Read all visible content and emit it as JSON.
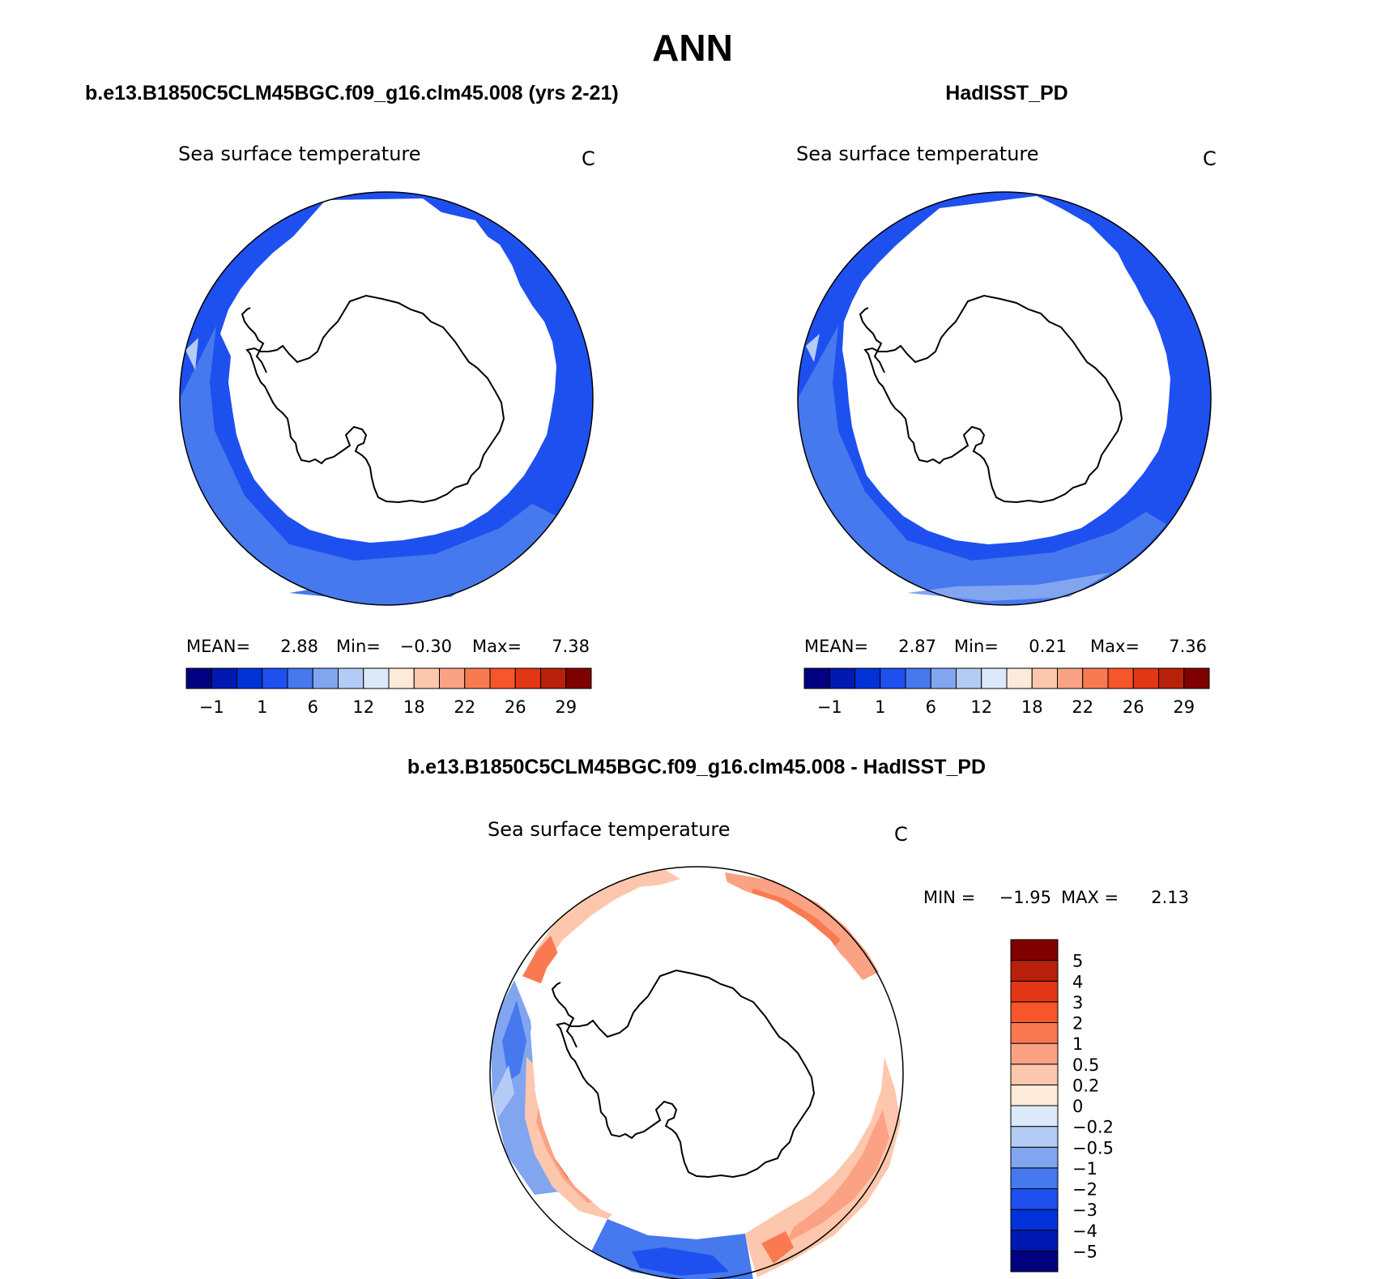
{
  "figure": {
    "title": "ANN",
    "colors": {
      "coast": "#000000",
      "background": "#ffffff"
    }
  },
  "panels": {
    "model": {
      "header": "b.e13.B1850C5CLM45BGC.f09_g16.clm45.008 (yrs 2-21)",
      "variable": "Sea surface temperature",
      "units": "C",
      "stats": {
        "mean_label": "MEAN=",
        "mean_value": "2.88",
        "min_label": "Min=",
        "min_value": "−0.30",
        "max_label": "Max=",
        "max_value": "7.38"
      }
    },
    "obs": {
      "header": "HadISST_PD",
      "variable": "Sea surface temperature",
      "units": "C",
      "stats": {
        "mean_label": "MEAN=",
        "mean_value": "2.87",
        "min_label": "Min=",
        "min_value": "0.21",
        "max_label": "Max=",
        "max_value": "7.36"
      }
    },
    "diff": {
      "header": "b.e13.B1850C5CLM45BGC.f09_g16.clm45.008 - HadISST_PD",
      "variable": "Sea surface temperature",
      "units": "C",
      "stats": {
        "min_label": "MIN =",
        "min_value": "−1.95",
        "max_label": "MAX =",
        "max_value": "2.13"
      }
    }
  },
  "colorbars": {
    "abs": {
      "colors": [
        "#000080",
        "#0019b3",
        "#0032d8",
        "#1e50f0",
        "#4678ee",
        "#82a5f0",
        "#b4ccf5",
        "#dce9fa",
        "#fdeada",
        "#fdc7ad",
        "#fba285",
        "#f97a50",
        "#f6562a",
        "#e13714",
        "#b8200a",
        "#800000"
      ],
      "tick_labels": [
        "−1",
        "1",
        "6",
        "12",
        "18",
        "22",
        "26",
        "29"
      ]
    },
    "diff": {
      "colors": [
        "#000080",
        "#0019b3",
        "#0032d8",
        "#1e50f0",
        "#4678ee",
        "#82a5f0",
        "#b4ccf5",
        "#dce9fa",
        "#fdeada",
        "#fdc7ad",
        "#fba285",
        "#f97a50",
        "#f6562a",
        "#e13714",
        "#b8200a",
        "#800000"
      ],
      "tick_labels": [
        "5",
        "4",
        "3",
        "2",
        "1",
        "0.5",
        "0.2",
        "0",
        "−0.2",
        "−0.5",
        "−1",
        "−2",
        "−3",
        "−4",
        "−5"
      ]
    }
  }
}
